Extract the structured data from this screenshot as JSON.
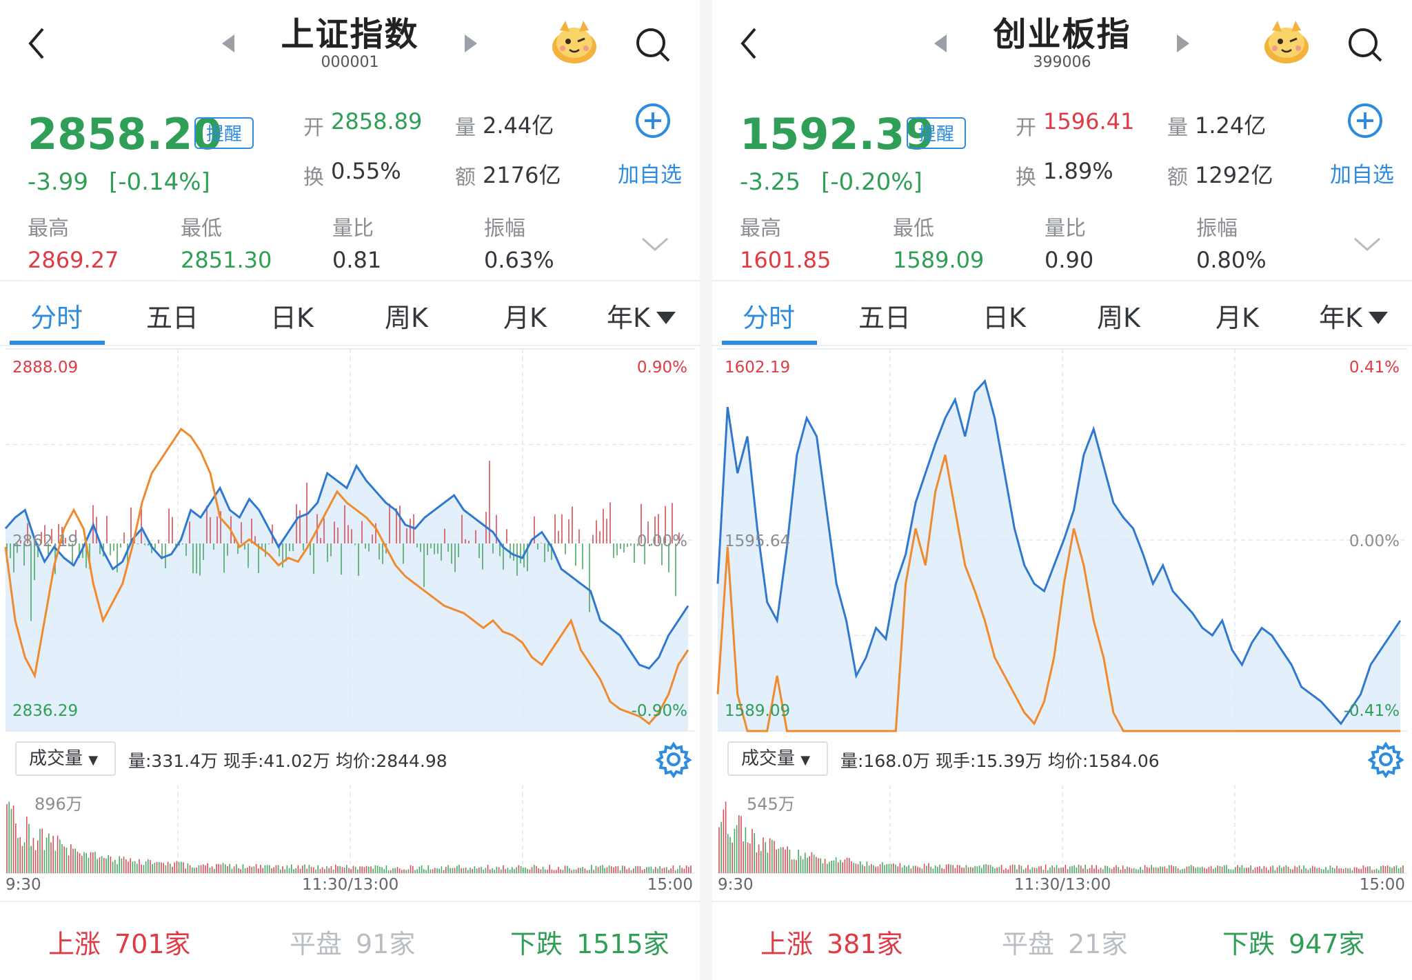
{
  "panels": [
    {
      "title": "上证指数",
      "code": "000001",
      "price": "2858.20",
      "remind": "提醒",
      "change": "-3.99",
      "change_pct": "[-0.14%]",
      "open_label": "开",
      "open": "2858.89",
      "vol_label": "量",
      "vol": "2.44亿",
      "turn_label": "换",
      "turn": "0.55%",
      "amt_label": "额",
      "amt": "2176亿",
      "add_label": "加自选",
      "high_label": "最高",
      "high": "2869.27",
      "low_label": "最低",
      "low": "2851.30",
      "ratio_label": "量比",
      "ratio": "0.81",
      "amp_label": "振幅",
      "amp": "0.63%",
      "tabs": [
        "分时",
        "五日",
        "日K",
        "周K",
        "月K",
        "年K"
      ],
      "axis_top": "2888.09",
      "axis_mid": "2862.19",
      "axis_bot": "2836.29",
      "pct_top": "0.90%",
      "pct_mid": "0.00%",
      "pct_bot": "-0.90%",
      "volume_button": "成交量",
      "vol_info": "量:331.4万  现手:41.02万  均价:2844.98",
      "vol_max": "896万",
      "time_start": "9:30",
      "time_mid": "11:30/13:00",
      "time_end": "15:00",
      "up_label": "上涨",
      "up_count": "701家",
      "flat_label": "平盘",
      "flat_count": "91家",
      "down_label": "下跌",
      "down_count": "1515家",
      "price_line": [
        0.55,
        0.58,
        0.6,
        0.52,
        0.46,
        0.5,
        0.47,
        0.45,
        0.5,
        0.56,
        0.49,
        0.44,
        0.46,
        0.52,
        0.55,
        0.5,
        0.47,
        0.48,
        0.52,
        0.6,
        0.58,
        0.62,
        0.66,
        0.6,
        0.58,
        0.63,
        0.6,
        0.55,
        0.5,
        0.54,
        0.58,
        0.59,
        0.62,
        0.7,
        0.68,
        0.66,
        0.72,
        0.68,
        0.65,
        0.62,
        0.6,
        0.56,
        0.55,
        0.58,
        0.6,
        0.62,
        0.64,
        0.6,
        0.58,
        0.56,
        0.54,
        0.5,
        0.48,
        0.47,
        0.52,
        0.54,
        0.5,
        0.44,
        0.42,
        0.4,
        0.38,
        0.3,
        0.28,
        0.26,
        0.22,
        0.18,
        0.17,
        0.2,
        0.26,
        0.3,
        0.34
      ],
      "avg_line": [
        0.5,
        0.3,
        0.2,
        0.15,
        0.3,
        0.45,
        0.55,
        0.6,
        0.55,
        0.4,
        0.3,
        0.35,
        0.4,
        0.5,
        0.62,
        0.7,
        0.74,
        0.78,
        0.82,
        0.8,
        0.76,
        0.7,
        0.58,
        0.55,
        0.5,
        0.52,
        0.5,
        0.48,
        0.45,
        0.47,
        0.46,
        0.5,
        0.55,
        0.6,
        0.65,
        0.62,
        0.6,
        0.58,
        0.55,
        0.5,
        0.45,
        0.42,
        0.4,
        0.38,
        0.36,
        0.34,
        0.33,
        0.32,
        0.3,
        0.28,
        0.3,
        0.27,
        0.26,
        0.24,
        0.2,
        0.18,
        0.22,
        0.26,
        0.3,
        0.22,
        0.18,
        0.14,
        0.08,
        0.06,
        0.05,
        0.04,
        0.02,
        0.05,
        0.1,
        0.18,
        0.22
      ],
      "avg_line_shift": 0.0
    },
    {
      "title": "创业板指",
      "code": "399006",
      "price": "1592.39",
      "remind": "提醒",
      "change": "-3.25",
      "change_pct": "[-0.20%]",
      "open_label": "开",
      "open": "1596.41",
      "vol_label": "量",
      "vol": "1.24亿",
      "turn_label": "换",
      "turn": "1.89%",
      "amt_label": "额",
      "amt": "1292亿",
      "add_label": "加自选",
      "high_label": "最高",
      "high": "1601.85",
      "low_label": "最低",
      "low": "1589.09",
      "ratio_label": "量比",
      "ratio": "0.90",
      "amp_label": "振幅",
      "amp": "0.80%",
      "tabs": [
        "分时",
        "五日",
        "日K",
        "周K",
        "月K",
        "年K"
      ],
      "axis_top": "1602.19",
      "axis_mid": "1595.64",
      "axis_bot": "1589.09",
      "pct_top": "0.41%",
      "pct_mid": "0.00%",
      "pct_bot": "-0.41%",
      "volume_button": "成交量",
      "vol_info": "量:168.0万  现手:15.39万  均价:1584.06",
      "vol_max": "545万",
      "time_start": "9:30",
      "time_mid": "11:30/13:00",
      "time_end": "15:00",
      "up_label": "上涨",
      "up_count": "381家",
      "flat_label": "平盘",
      "flat_count": "21家",
      "down_label": "下跌",
      "down_count": "947家",
      "price_line": [
        0.4,
        0.88,
        0.7,
        0.8,
        0.55,
        0.35,
        0.3,
        0.5,
        0.75,
        0.85,
        0.8,
        0.6,
        0.4,
        0.3,
        0.15,
        0.2,
        0.28,
        0.25,
        0.4,
        0.48,
        0.62,
        0.7,
        0.78,
        0.85,
        0.9,
        0.8,
        0.92,
        0.95,
        0.85,
        0.7,
        0.55,
        0.45,
        0.4,
        0.38,
        0.45,
        0.52,
        0.6,
        0.75,
        0.82,
        0.72,
        0.62,
        0.58,
        0.55,
        0.48,
        0.4,
        0.45,
        0.38,
        0.35,
        0.32,
        0.28,
        0.26,
        0.3,
        0.22,
        0.18,
        0.24,
        0.28,
        0.26,
        0.22,
        0.18,
        0.12,
        0.1,
        0.08,
        0.05,
        0.02,
        0.06,
        0.1,
        0.18,
        0.22,
        0.26,
        0.3
      ],
      "avg_line": [
        0.1,
        0.5,
        0.1,
        0.0,
        0.0,
        0.0,
        0.15,
        0.0,
        0.0,
        0.0,
        0.0,
        0.0,
        0.0,
        0.0,
        0.0,
        0.0,
        0.0,
        0.0,
        0.0,
        0.4,
        0.55,
        0.45,
        0.65,
        0.75,
        0.6,
        0.45,
        0.38,
        0.3,
        0.2,
        0.15,
        0.1,
        0.05,
        0.02,
        0.08,
        0.2,
        0.4,
        0.55,
        0.45,
        0.3,
        0.2,
        0.05,
        0.0,
        0.0,
        0.0,
        0.0,
        0.0,
        0.0,
        0.0,
        0.0,
        0.0,
        0.0,
        0.0,
        0.0,
        0.0,
        0.0,
        0.0,
        0.0,
        0.0,
        0.0,
        0.0,
        0.0,
        0.0,
        0.0,
        0.0,
        0.0,
        0.0,
        0.0,
        0.0,
        0.0,
        0.0
      ],
      "avg_line_shift": 0.0
    }
  ],
  "colors": {
    "up": "#e03a44",
    "down": "#2f9e57",
    "accent": "#2d8be0",
    "avg": "#f08a2c"
  }
}
